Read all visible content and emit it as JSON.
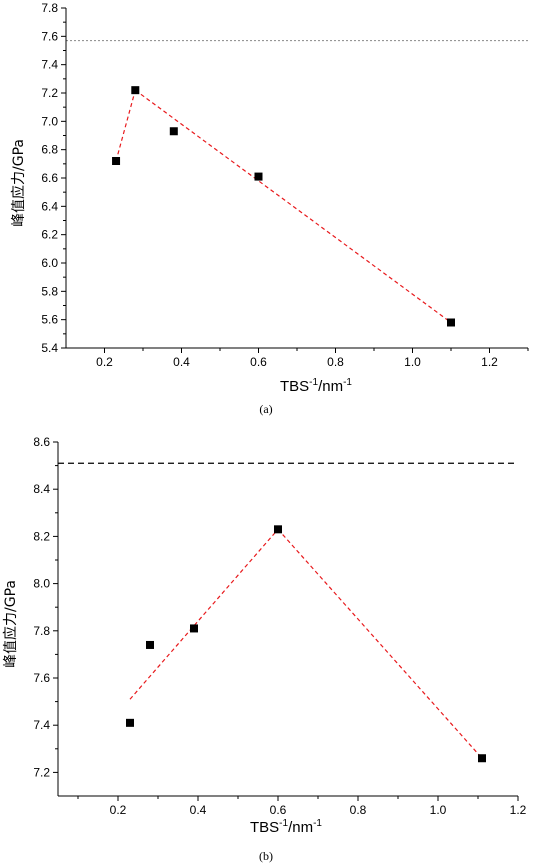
{
  "chart_data": [
    {
      "type": "scatter",
      "panel": "a",
      "caption": "(a)",
      "xlabel_main": "TBS",
      "xlabel_sup1": "-1",
      "xlabel_mid": "/nm",
      "xlabel_sup2": "-1",
      "ylabel": "峰值应力/GPa",
      "xlim": [
        0.1,
        1.3
      ],
      "ylim": [
        5.4,
        7.8
      ],
      "x_ticks": [
        0.2,
        0.4,
        0.6,
        0.8,
        1.0,
        1.2
      ],
      "x_tick_labels": [
        "0.2",
        "0.4",
        "0.6",
        "0.8",
        "1.0",
        "1.2"
      ],
      "y_ticks": [
        5.4,
        5.6,
        5.8,
        6.0,
        6.2,
        6.4,
        6.6,
        6.8,
        7.0,
        7.2,
        7.4,
        7.6,
        7.8
      ],
      "y_tick_labels": [
        "5.4",
        "5.6",
        "5.8",
        "6.0",
        "6.2",
        "6.4",
        "6.6",
        "6.8",
        "7.0",
        "7.2",
        "7.4",
        "7.6",
        "7.8"
      ],
      "points": [
        {
          "x": 0.23,
          "y": 6.72
        },
        {
          "x": 0.28,
          "y": 7.22
        },
        {
          "x": 0.38,
          "y": 6.93
        },
        {
          "x": 0.6,
          "y": 6.61
        },
        {
          "x": 1.1,
          "y": 5.58
        }
      ],
      "fit_lines": [
        {
          "x": [
            0.23,
            0.28
          ],
          "y": [
            6.72,
            7.22
          ]
        },
        {
          "x": [
            0.28,
            1.1
          ],
          "y": [
            7.22,
            5.58
          ]
        }
      ],
      "reference_line": {
        "y": 7.57,
        "style": "dotted",
        "color": "#888888"
      },
      "fit_color": "#e8191c",
      "grid": false
    },
    {
      "type": "scatter",
      "panel": "b",
      "caption": "(b)",
      "xlabel_main": "TBS",
      "xlabel_sup1": "-1",
      "xlabel_mid": "/nm",
      "xlabel_sup2": "-1",
      "ylabel": "峰值应力/GPa",
      "xlim": [
        0.05,
        1.2
      ],
      "ylim": [
        7.1,
        8.6
      ],
      "x_ticks": [
        0.2,
        0.4,
        0.6,
        0.8,
        1.0,
        1.2
      ],
      "x_tick_labels": [
        "0.2",
        "0.4",
        "0.6",
        "0.8",
        "1.0",
        "1.2"
      ],
      "y_ticks": [
        7.2,
        7.4,
        7.6,
        7.8,
        8.0,
        8.2,
        8.4,
        8.6
      ],
      "y_tick_labels": [
        "7.2",
        "7.4",
        "7.6",
        "7.8",
        "8.0",
        "8.2",
        "8.4",
        "8.6"
      ],
      "points": [
        {
          "x": 0.23,
          "y": 7.41
        },
        {
          "x": 0.28,
          "y": 7.74
        },
        {
          "x": 0.39,
          "y": 7.81
        },
        {
          "x": 0.6,
          "y": 8.23
        },
        {
          "x": 1.11,
          "y": 7.26
        }
      ],
      "fit_lines": [
        {
          "x": [
            0.23,
            0.6
          ],
          "y": [
            7.51,
            8.23
          ]
        },
        {
          "x": [
            0.6,
            1.11
          ],
          "y": [
            8.23,
            7.26
          ]
        }
      ],
      "reference_line": {
        "y": 8.51,
        "style": "dashed",
        "color": "#000000"
      },
      "fit_color": "#e8191c",
      "grid": false
    }
  ]
}
